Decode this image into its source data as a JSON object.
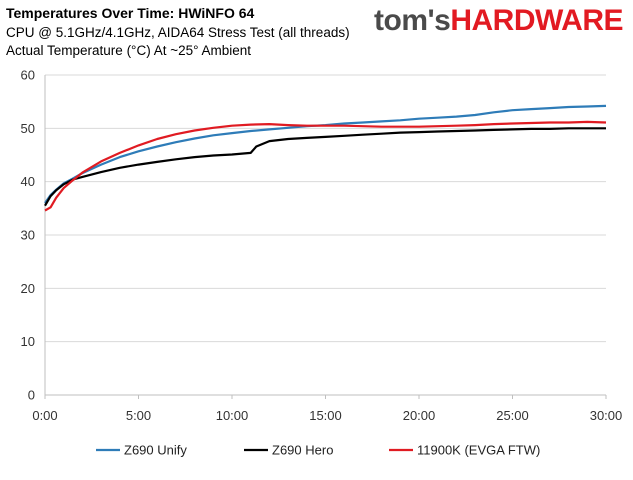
{
  "header": {
    "title": "Temperatures Over Time: HWiNFO 64",
    "subtitle1": "CPU @ 5.1GHz/4.1GHz, AIDA64 Stress Test (all threads)",
    "subtitle2": "Actual Temperature (°C) At ~25° Ambient",
    "logo_part1": "tom's",
    "logo_part2": "HARDWARE"
  },
  "colors": {
    "brand_red": "#e21a22",
    "gridline": "#d9d9d9"
  },
  "chart_data": {
    "type": "line",
    "title": "Temperatures Over Time: HWiNFO 64",
    "x_tick_labels": [
      "0:00",
      "5:00",
      "10:00",
      "15:00",
      "20:00",
      "25:00",
      "30:00"
    ],
    "y_tick_labels": [
      "0",
      "10",
      "20",
      "30",
      "40",
      "50",
      "60"
    ],
    "xlim": [
      0,
      30
    ],
    "ylim": [
      0,
      60
    ],
    "x_unit": "minutes",
    "grid": "horizontal",
    "legend_position": "bottom",
    "series": [
      {
        "name": "Z690 Unify",
        "color": "#2e7cb8",
        "points": [
          [
            0,
            36
          ],
          [
            0.3,
            37.5
          ],
          [
            0.6,
            38.5
          ],
          [
            1,
            39.7
          ],
          [
            1.5,
            40.6
          ],
          [
            2,
            41.6
          ],
          [
            3,
            43.2
          ],
          [
            4,
            44.6
          ],
          [
            5,
            45.7
          ],
          [
            6,
            46.6
          ],
          [
            7,
            47.4
          ],
          [
            8,
            48.1
          ],
          [
            9,
            48.7
          ],
          [
            10,
            49.1
          ],
          [
            11,
            49.5
          ],
          [
            12,
            49.8
          ],
          [
            13,
            50.1
          ],
          [
            14,
            50.4
          ],
          [
            15,
            50.6
          ],
          [
            16,
            50.9
          ],
          [
            17,
            51.1
          ],
          [
            18,
            51.3
          ],
          [
            19,
            51.5
          ],
          [
            20,
            51.8
          ],
          [
            21,
            52.0
          ],
          [
            22,
            52.2
          ],
          [
            23,
            52.5
          ],
          [
            24,
            53.0
          ],
          [
            25,
            53.4
          ],
          [
            26,
            53.6
          ],
          [
            27,
            53.8
          ],
          [
            28,
            54.0
          ],
          [
            29,
            54.1
          ],
          [
            30,
            54.2
          ]
        ]
      },
      {
        "name": "Z690 Hero",
        "color": "#000000",
        "points": [
          [
            0,
            35.5
          ],
          [
            0.3,
            37.3
          ],
          [
            0.6,
            38.4
          ],
          [
            1,
            39.5
          ],
          [
            1.5,
            40.4
          ],
          [
            2,
            40.9
          ],
          [
            3,
            41.8
          ],
          [
            4,
            42.6
          ],
          [
            5,
            43.2
          ],
          [
            6,
            43.7
          ],
          [
            7,
            44.2
          ],
          [
            8,
            44.6
          ],
          [
            9,
            44.9
          ],
          [
            10,
            45.1
          ],
          [
            11,
            45.4
          ],
          [
            11.3,
            46.6
          ],
          [
            12,
            47.6
          ],
          [
            13,
            48.0
          ],
          [
            14,
            48.2
          ],
          [
            15,
            48.4
          ],
          [
            16,
            48.6
          ],
          [
            17,
            48.8
          ],
          [
            18,
            49.0
          ],
          [
            19,
            49.2
          ],
          [
            20,
            49.3
          ],
          [
            21,
            49.4
          ],
          [
            22,
            49.5
          ],
          [
            23,
            49.6
          ],
          [
            24,
            49.7
          ],
          [
            25,
            49.8
          ],
          [
            26,
            49.9
          ],
          [
            27,
            49.9
          ],
          [
            28,
            50.0
          ],
          [
            29,
            50.0
          ],
          [
            30,
            50.0
          ]
        ]
      },
      {
        "name": "11900K (EVGA FTW)",
        "color": "#e01b22",
        "points": [
          [
            0,
            34.6
          ],
          [
            0.3,
            35.2
          ],
          [
            0.6,
            37.0
          ],
          [
            1,
            38.8
          ],
          [
            1.5,
            40.3
          ],
          [
            2,
            41.7
          ],
          [
            3,
            43.8
          ],
          [
            4,
            45.4
          ],
          [
            5,
            46.8
          ],
          [
            6,
            48.0
          ],
          [
            7,
            48.9
          ],
          [
            8,
            49.6
          ],
          [
            9,
            50.1
          ],
          [
            10,
            50.5
          ],
          [
            11,
            50.7
          ],
          [
            12,
            50.8
          ],
          [
            13,
            50.6
          ],
          [
            14,
            50.5
          ],
          [
            15,
            50.5
          ],
          [
            16,
            50.5
          ],
          [
            17,
            50.4
          ],
          [
            18,
            50.3
          ],
          [
            19,
            50.3
          ],
          [
            20,
            50.3
          ],
          [
            21,
            50.4
          ],
          [
            22,
            50.5
          ],
          [
            23,
            50.6
          ],
          [
            24,
            50.8
          ],
          [
            25,
            50.9
          ],
          [
            26,
            51.0
          ],
          [
            27,
            51.1
          ],
          [
            28,
            51.1
          ],
          [
            29,
            51.2
          ],
          [
            30,
            51.1
          ]
        ]
      }
    ]
  }
}
